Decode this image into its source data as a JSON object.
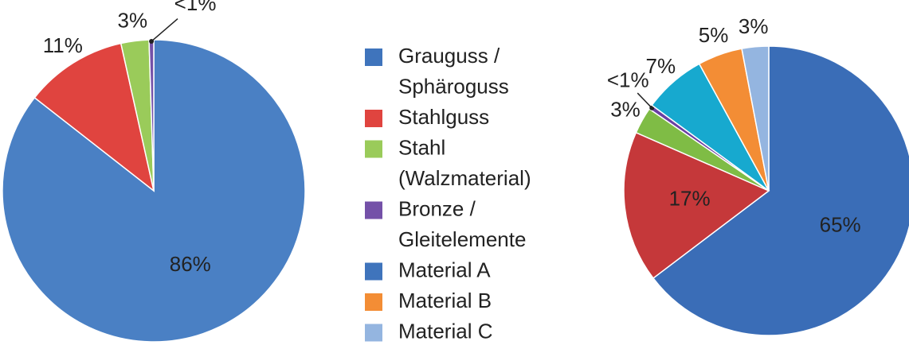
{
  "chart_data": [
    {
      "type": "pie",
      "values": [
        86,
        11,
        3,
        0.5
      ],
      "value_labels": [
        "86%",
        "11%",
        "3%",
        "<1%"
      ],
      "colors": [
        "#4a80c4",
        "#e0443f",
        "#9acb5a",
        "#7451a8"
      ]
    },
    {
      "type": "pie",
      "categories": [
        "Grauguss / Sphäroguss",
        "Stahlguss",
        "Stahl (Walzmaterial)",
        "Bronze / Gleitelemente",
        "Material A",
        "Material B",
        "Material C"
      ],
      "values": [
        65,
        17,
        3,
        0.5,
        7,
        5,
        3
      ],
      "value_labels": [
        "65%",
        "17%",
        "3%",
        "<1%",
        "7%",
        "5%",
        "3%"
      ],
      "colors": [
        "#3a6db7",
        "#c5383a",
        "#7fbc45",
        "#6a3fa2",
        "#17a9cf",
        "#f38d35",
        "#94b5e0"
      ],
      "legend_colors": [
        "#3f74bc",
        "#e0443f",
        "#9acb5a",
        "#7451a8",
        "#3f74bc",
        "#f38d35",
        "#94b5e0"
      ]
    }
  ]
}
